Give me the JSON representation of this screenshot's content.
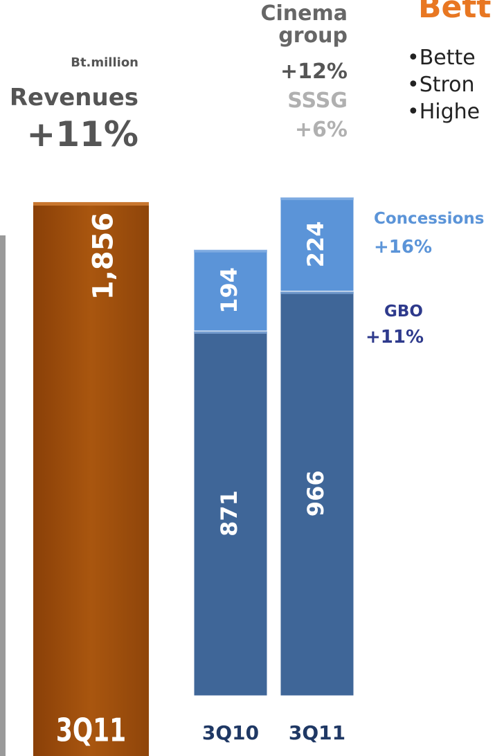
{
  "chart_data": [
    {
      "type": "bar",
      "unit": "Bt.million",
      "title": "Revenues",
      "change": "+11%",
      "categories": [
        "3Q11"
      ],
      "values": [
        1856
      ],
      "value_labels": [
        "1,856"
      ],
      "color": "#a24f0e",
      "ylim": [
        0,
        1900
      ]
    },
    {
      "type": "stacked_bar",
      "title": "Cinema group",
      "change": "+12%",
      "subtitle": "SSSG",
      "subtitle_change": "+6%",
      "categories": [
        "3Q10",
        "3Q11"
      ],
      "series": [
        {
          "name": "GBO",
          "change": "+11%",
          "color": "#3f6698",
          "values": [
            871,
            966
          ]
        },
        {
          "name": "Concessions",
          "change": "+16%",
          "color": "#5b94d8",
          "values": [
            194,
            224
          ]
        }
      ],
      "ylim": [
        0,
        1200
      ]
    }
  ],
  "side_text": {
    "heading": "Bett",
    "bullets": [
      "Bette",
      "Stron",
      "Highe"
    ]
  }
}
